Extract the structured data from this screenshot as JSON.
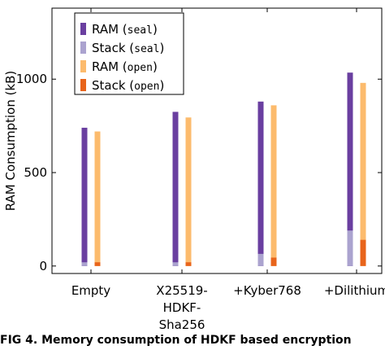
{
  "chart_data": {
    "type": "bar",
    "ylabel": "RAM Consumption (kB)",
    "xlabel": "",
    "title": "",
    "ylim": [
      -40,
      1380
    ],
    "yticks": [
      0,
      500,
      1000
    ],
    "grid": false,
    "legend_position": "top-left",
    "categories": [
      "Empty",
      "X25519-HDKF-Sha256",
      "+Kyber768",
      "+Dilithium"
    ],
    "category_label_lines": [
      [
        "Empty"
      ],
      [
        "X25519-",
        "HDKF-",
        "Sha256"
      ],
      [
        "+Kyber768"
      ],
      [
        "+Dilithium"
      ]
    ],
    "series": [
      {
        "name": "RAM",
        "mode": "seal",
        "values": [
          740,
          825,
          880,
          1035
        ]
      },
      {
        "name": "Stack",
        "mode": "seal",
        "values": [
          20,
          20,
          65,
          190
        ]
      },
      {
        "name": "RAM",
        "mode": "open",
        "values": [
          720,
          795,
          860,
          980
        ]
      },
      {
        "name": "Stack",
        "mode": "open",
        "values": [
          20,
          20,
          45,
          140
        ]
      }
    ],
    "colors": {
      "ram_seal": "#6a3fa0",
      "stack_seal": "#aba3cf",
      "ram_open": "#fcbb6d",
      "stack_open": "#e8641b"
    }
  },
  "caption": "FIG 4. Memory consumption of HDKF based encryption"
}
